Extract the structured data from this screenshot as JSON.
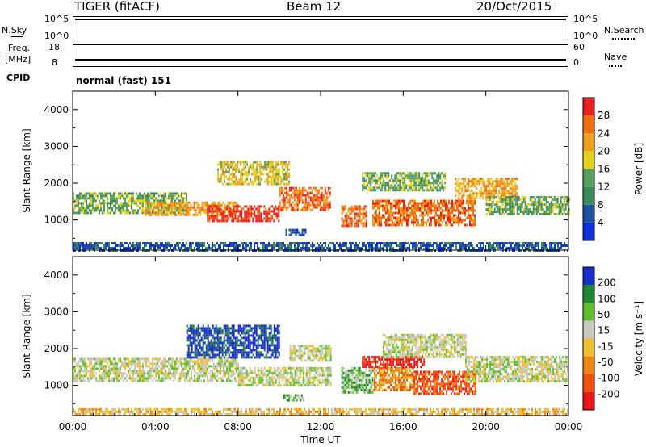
{
  "header": {
    "title": "TIGER (fitACF)",
    "beam": "Beam 12",
    "date": "20/Oct/2015"
  },
  "top_panels": {
    "nsky_label": "N.Sky",
    "nsky_ticks": [
      "10^5",
      "10^0"
    ],
    "nsearch_label": "N.Search",
    "nsearch_ticks": [
      "10^5",
      "10^0"
    ],
    "freq_label_1": "Freq.",
    "freq_label_2": "[MHz]",
    "freq_ticks": [
      "18",
      "8"
    ],
    "nave_label": "Nave",
    "nave_ticks": [
      "60",
      "0"
    ],
    "cpid_label": "CPID",
    "cpid_text": "normal (fast) 151"
  },
  "colors": {
    "power": [
      "#1030e0",
      "#2050a0",
      "#3a8a5a",
      "#5aa060",
      "#e8d020",
      "#f0a020",
      "#f07010",
      "#e82020"
    ],
    "velocity": [
      "#e81818",
      "#f05010",
      "#f08818",
      "#f0c030",
      "#c8c8c0",
      "#60c030",
      "#208830",
      "#1830c8"
    ]
  },
  "chart_data": [
    {
      "type": "heatmap",
      "name": "power",
      "ylabel": "Slant Range [km]",
      "xlabel": "Time UT",
      "x_ticks": [
        "00:00",
        "04:00",
        "08:00",
        "12:00",
        "16:00",
        "20:00",
        "00:00"
      ],
      "y_ticks": [
        1000,
        2000,
        3000,
        4000
      ],
      "ylim": [
        180,
        4500
      ],
      "colorbar_label": "Power [dB]",
      "colorbar_ticks": [
        "4",
        "8",
        "12",
        "16",
        "20",
        "24",
        "28"
      ],
      "bands": [
        {
          "t0": 0.0,
          "t1": 5.5,
          "r0": 1200,
          "r1": 1750,
          "level": 3
        },
        {
          "t0": 3.5,
          "t1": 8.0,
          "r0": 1150,
          "r1": 1500,
          "level": 5
        },
        {
          "t0": 6.5,
          "t1": 10.0,
          "r0": 950,
          "r1": 1400,
          "level": 7
        },
        {
          "t0": 7.0,
          "t1": 10.5,
          "r0": 2000,
          "r1": 2600,
          "level": 4
        },
        {
          "t0": 10.0,
          "t1": 12.5,
          "r0": 1300,
          "r1": 1900,
          "level": 6
        },
        {
          "t0": 13.0,
          "t1": 14.2,
          "r0": 850,
          "r1": 1400,
          "level": 6
        },
        {
          "t0": 14.5,
          "t1": 19.5,
          "r0": 850,
          "r1": 1550,
          "level": 6
        },
        {
          "t0": 14.0,
          "t1": 18.0,
          "r0": 1800,
          "r1": 2300,
          "level": 3
        },
        {
          "t0": 18.5,
          "t1": 21.5,
          "r0": 1600,
          "r1": 2150,
          "level": 5
        },
        {
          "t0": 20.0,
          "t1": 24.0,
          "r0": 1150,
          "r1": 1650,
          "level": 3
        },
        {
          "t0": 10.3,
          "t1": 11.3,
          "r0": 580,
          "r1": 760,
          "level": 1
        },
        {
          "t0": 0.0,
          "t1": 24.0,
          "r0": 200,
          "r1": 400,
          "level": 1
        }
      ]
    },
    {
      "type": "heatmap",
      "name": "velocity",
      "ylabel": "Slant Range [km]",
      "xlabel": "Time UT",
      "x_ticks": [
        "00:00",
        "04:00",
        "08:00",
        "12:00",
        "16:00",
        "20:00",
        "00:00"
      ],
      "y_ticks": [
        1000,
        2000,
        3000,
        4000
      ],
      "ylim": [
        180,
        4500
      ],
      "colorbar_label": "Velocity [m s⁻¹]",
      "colorbar_ticks": [
        "-200",
        "-100",
        "-50",
        "-15",
        "15",
        "50",
        "100",
        "200"
      ],
      "bands": [
        {
          "t0": 0.0,
          "t1": 8.0,
          "r0": 1150,
          "r1": 1750,
          "level": 4
        },
        {
          "t0": 5.5,
          "t1": 10.0,
          "r0": 1750,
          "r1": 2650,
          "level": 7
        },
        {
          "t0": 8.0,
          "t1": 12.5,
          "r0": 1000,
          "r1": 1500,
          "level": 4
        },
        {
          "t0": 10.5,
          "t1": 12.5,
          "r0": 1700,
          "r1": 2100,
          "level": 4
        },
        {
          "t0": 10.2,
          "t1": 11.2,
          "r0": 580,
          "r1": 760,
          "level": 5
        },
        {
          "t0": 13.0,
          "t1": 14.5,
          "r0": 800,
          "r1": 1500,
          "level": 5
        },
        {
          "t0": 14.5,
          "t1": 16.5,
          "r0": 900,
          "r1": 1500,
          "level": 2
        },
        {
          "t0": 16.5,
          "t1": 19.5,
          "r0": 800,
          "r1": 1400,
          "level": 1
        },
        {
          "t0": 14.0,
          "t1": 17.0,
          "r0": 1500,
          "r1": 1800,
          "level": 0
        },
        {
          "t0": 15.0,
          "t1": 19.0,
          "r0": 1800,
          "r1": 2400,
          "level": 4
        },
        {
          "t0": 19.0,
          "t1": 24.0,
          "r0": 1100,
          "r1": 1800,
          "level": 4
        },
        {
          "t0": 0.0,
          "t1": 24.0,
          "r0": 200,
          "r1": 380,
          "level": 3
        }
      ]
    }
  ]
}
